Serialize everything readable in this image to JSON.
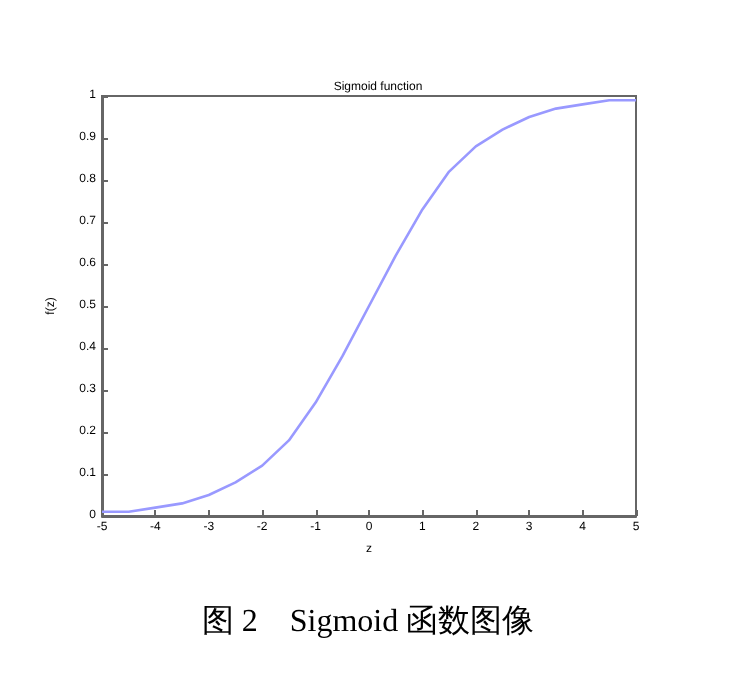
{
  "chart_data": {
    "type": "line",
    "title": "Sigmoid function",
    "xlabel": "z",
    "ylabel": "f(z)",
    "annotations": [
      "图 2    Sigmoid 函数图像"
    ],
    "x": [
      -5,
      -4.5,
      -4,
      -3.5,
      -3,
      -2.5,
      -2,
      -1.5,
      -1,
      -0.5,
      0,
      0.5,
      1,
      1.5,
      2,
      2.5,
      3,
      3.5,
      4,
      4.5,
      5
    ],
    "series": [
      {
        "color": "#9999ff",
        "values": [
          0.01,
          0.01,
          0.02,
          0.03,
          0.05,
          0.08,
          0.12,
          0.18,
          0.27,
          0.38,
          0.5,
          0.62,
          0.73,
          0.82,
          0.88,
          0.92,
          0.95,
          0.97,
          0.98,
          0.99,
          0.99
        ]
      }
    ],
    "xlim": [
      -5,
      5
    ],
    "xticks": [
      -5,
      -4,
      -3,
      -2,
      -1,
      0,
      1,
      2,
      3,
      4,
      5
    ],
    "ylim": [
      0,
      1
    ],
    "yticks": [
      0,
      0.1,
      0.2,
      0.3,
      0.4,
      0.5,
      0.6,
      0.7,
      0.8,
      0.9,
      1
    ],
    "grid": false,
    "marker": "none",
    "line_style": "solid"
  }
}
